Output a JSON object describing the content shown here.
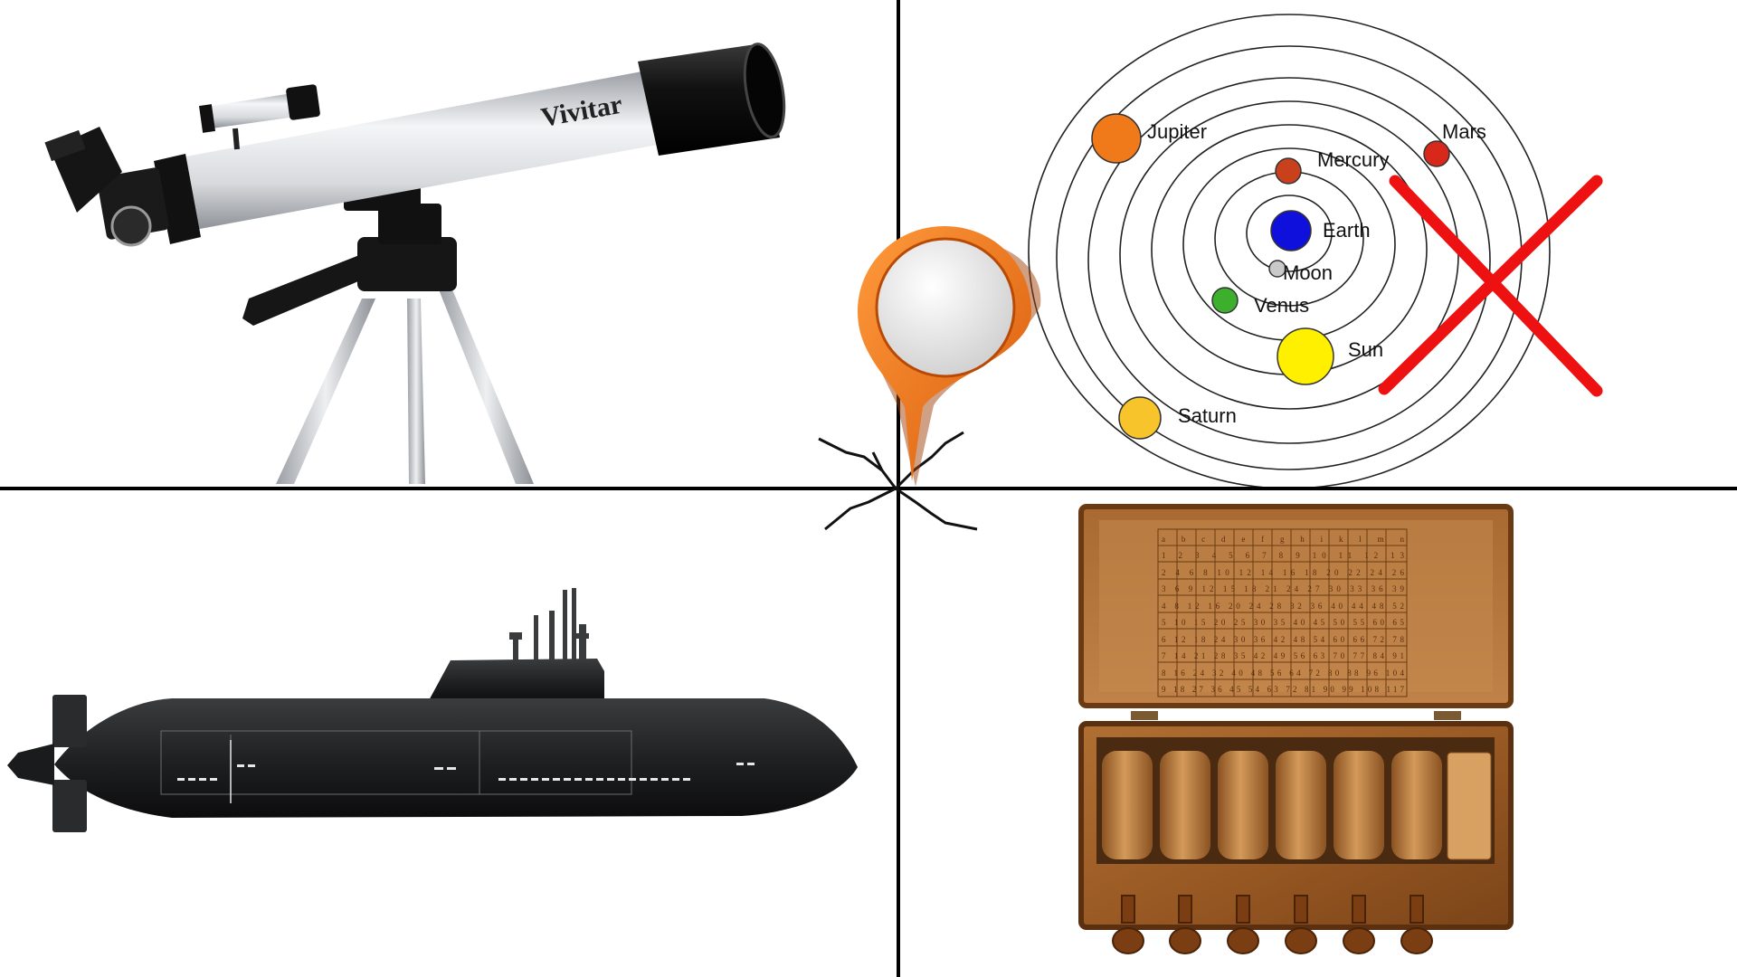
{
  "colors": {
    "background": "#ffffff",
    "divider": "#000000",
    "pin": "#f07a1a",
    "cross": "#ee1111"
  },
  "panels": {
    "telescope": {
      "brand": "Vivitar"
    },
    "solar_model": {
      "planets": [
        {
          "name": "Jupiter",
          "color": "#f07a1a"
        },
        {
          "name": "Mars",
          "color": "#d8281c"
        },
        {
          "name": "Mercury",
          "color": "#c8401c"
        },
        {
          "name": "Earth",
          "color": "#1010dd"
        },
        {
          "name": "Moon",
          "color": "#c9c9c9"
        },
        {
          "name": "Venus",
          "color": "#3cb02c"
        },
        {
          "name": "Sun",
          "color": "#fff000"
        },
        {
          "name": "Saturn",
          "color": "#f8c42c"
        }
      ],
      "cross_icon": "x-mark-icon"
    },
    "submarine": {},
    "cipher_box": {
      "grid_rows": [
        "a b c d e f g h i k l m n",
        "1 2 3 4 5 6 7 8 9 10 11 12 13",
        "2 4 6 8 10 12 14 16 18 20 22 24 26",
        "3 6 9 12 15 18 21 24 27 30 33 36 39",
        "4 8 12 16 20 24 28 32 36 40 44 48 52",
        "5 10 15 20 25 30 35 40 45 50 55 60 65",
        "6 12 18 24 30 36 42 48 54 60 66 72 78",
        "7 14 21 28 35 42 49 56 63 70 77 84 91",
        "8 16 24 32 40 48 56 64 72 80 88 96 104",
        "9 18 27 36 45 54 63 72 81 90 99 108 117"
      ]
    }
  },
  "center_pin": {
    "icon": "map-pin-icon"
  }
}
